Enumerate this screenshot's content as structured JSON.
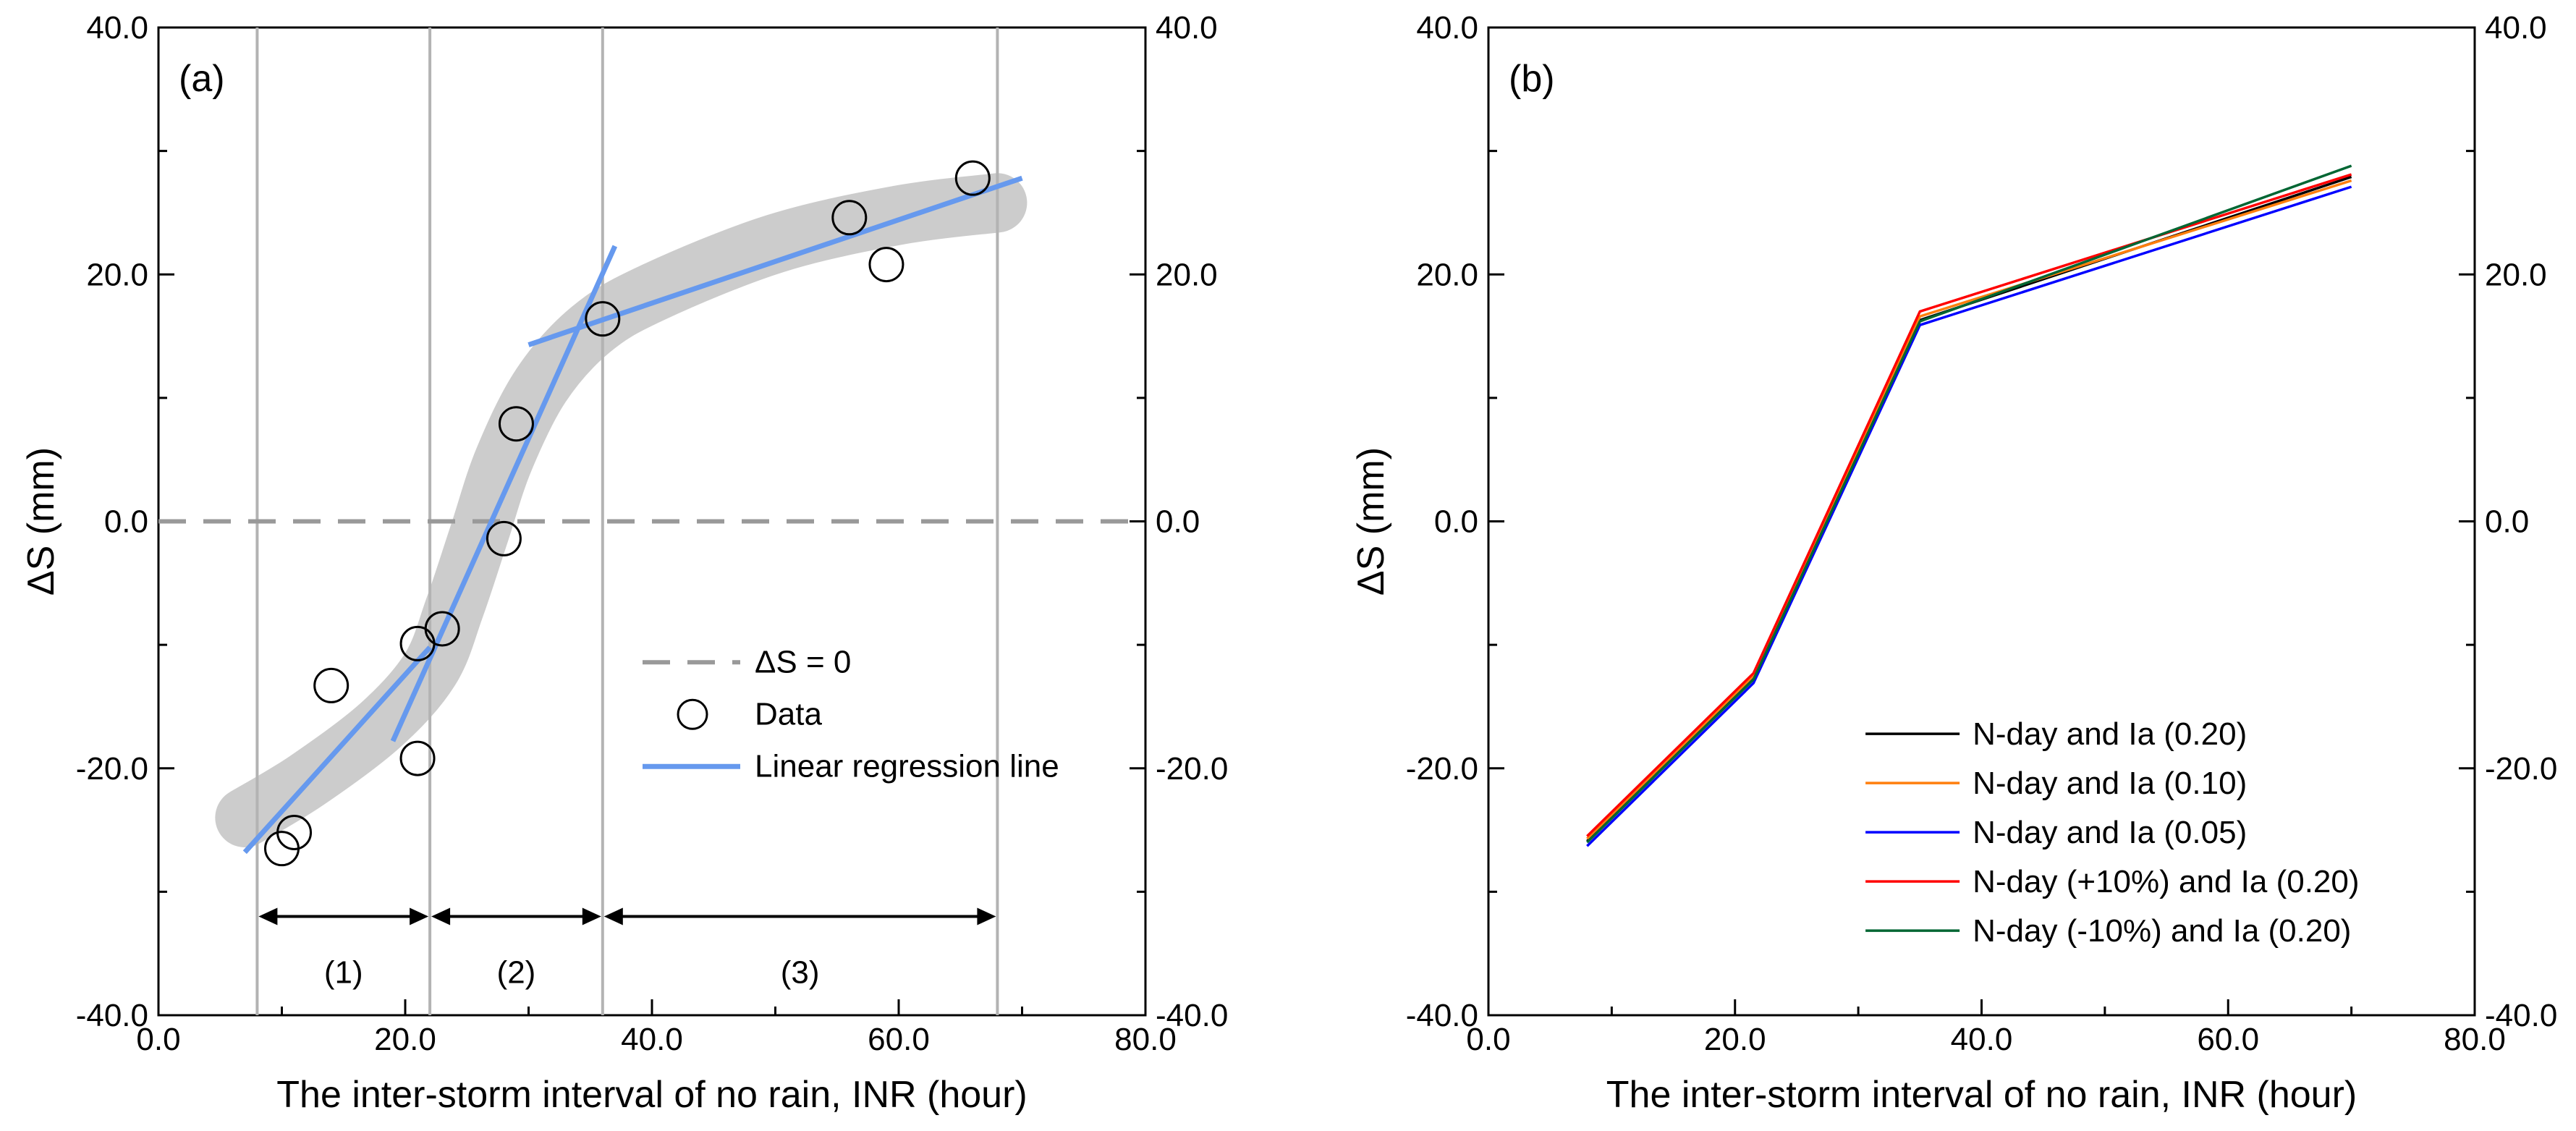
{
  "chart_data": [
    {
      "panel": "(a)",
      "type": "scatter",
      "xlabel": "The inter-storm interval of no rain, INR (hour)",
      "ylabel": "ΔS (mm)",
      "xlim": [
        0,
        80
      ],
      "ylim": [
        -40,
        40
      ],
      "x_ticks": [
        "0.0",
        "20.0",
        "40.0",
        "60.0",
        "80.0"
      ],
      "y_ticks": [
        "-40.0",
        "-20.0",
        "0.0",
        "20.0",
        "40.0"
      ],
      "y_ticks_right": [
        "-40.0",
        "-20.0",
        "0.0",
        "20.0",
        "40.0"
      ],
      "points": [
        {
          "x": 10,
          "y": -26.5
        },
        {
          "x": 11,
          "y": -25.2
        },
        {
          "x": 14,
          "y": -13.3
        },
        {
          "x": 21,
          "y": -9.9
        },
        {
          "x": 21,
          "y": -19.2
        },
        {
          "x": 23,
          "y": -8.7
        },
        {
          "x": 28,
          "y": -1.4
        },
        {
          "x": 29,
          "y": 7.9
        },
        {
          "x": 36,
          "y": 16.4
        },
        {
          "x": 56,
          "y": 24.6
        },
        {
          "x": 59,
          "y": 20.8
        },
        {
          "x": 66,
          "y": 27.8
        }
      ],
      "trend_band": [
        [
          7,
          -24
        ],
        [
          12,
          -21
        ],
        [
          18,
          -16.5
        ],
        [
          22,
          -12
        ],
        [
          24,
          -7
        ],
        [
          26,
          -1
        ],
        [
          28,
          5
        ],
        [
          31,
          11
        ],
        [
          35,
          15.5
        ],
        [
          40,
          18.5
        ],
        [
          50,
          22.5
        ],
        [
          60,
          24.8
        ],
        [
          68,
          25.8
        ]
      ],
      "regression_lines": [
        {
          "x": [
            7,
            22
          ],
          "y": [
            -26.8,
            -10.2
          ]
        },
        {
          "x": [
            19,
            37
          ],
          "y": [
            -17.8,
            22.3
          ]
        },
        {
          "x": [
            30,
            70
          ],
          "y": [
            14.3,
            27.8
          ]
        }
      ],
      "zero_line": 0,
      "vertical_lines": [
        8,
        22,
        36,
        68
      ],
      "regions": [
        {
          "label": "(1)",
          "from": 8,
          "to": 22
        },
        {
          "label": "(2)",
          "from": 22,
          "to": 36
        },
        {
          "label": "(3)",
          "from": 36,
          "to": 68
        }
      ],
      "arrow_y": -32,
      "legend": [
        {
          "label": "ΔS = 0",
          "style": "dashed"
        },
        {
          "label": "Data",
          "style": "circle"
        },
        {
          "label": "Linear regression line",
          "style": "line"
        }
      ]
    },
    {
      "panel": "(b)",
      "type": "line",
      "xlabel": "The inter-storm interval of no rain, INR (hour)",
      "ylabel": "ΔS (mm)",
      "xlim": [
        0,
        80
      ],
      "ylim": [
        -40,
        40
      ],
      "x_ticks": [
        "0.0",
        "20.0",
        "40.0",
        "60.0",
        "80.0"
      ],
      "y_ticks": [
        "-40.0",
        "-20.0",
        "0.0",
        "20.0",
        "40.0"
      ],
      "y_ticks_right": [
        "-40.0",
        "-20.0",
        "0.0",
        "20.0",
        "40.0"
      ],
      "x": [
        8,
        21.5,
        35,
        70
      ],
      "series": [
        {
          "name": "N-day and Ia (0.20)",
          "color": "#000000",
          "values": [
            -25.9,
            -12.7,
            16.3,
            27.9
          ]
        },
        {
          "name": "N-day and Ia (0.10)",
          "color": "#ff7f0e",
          "values": [
            -25.7,
            -12.5,
            16.6,
            27.6
          ]
        },
        {
          "name": "N-day and Ia (0.05)",
          "color": "#0000ff",
          "values": [
            -26.3,
            -13.1,
            15.9,
            27.1
          ]
        },
        {
          "name": "N-day (+10%) and Ia (0.20)",
          "color": "#ff0000",
          "values": [
            -25.5,
            -12.3,
            17.0,
            28.1
          ]
        },
        {
          "name": "N-day (-10%) and Ia (0.20)",
          "color": "#006633",
          "values": [
            -26.0,
            -12.8,
            16.2,
            28.8
          ]
        }
      ]
    }
  ]
}
